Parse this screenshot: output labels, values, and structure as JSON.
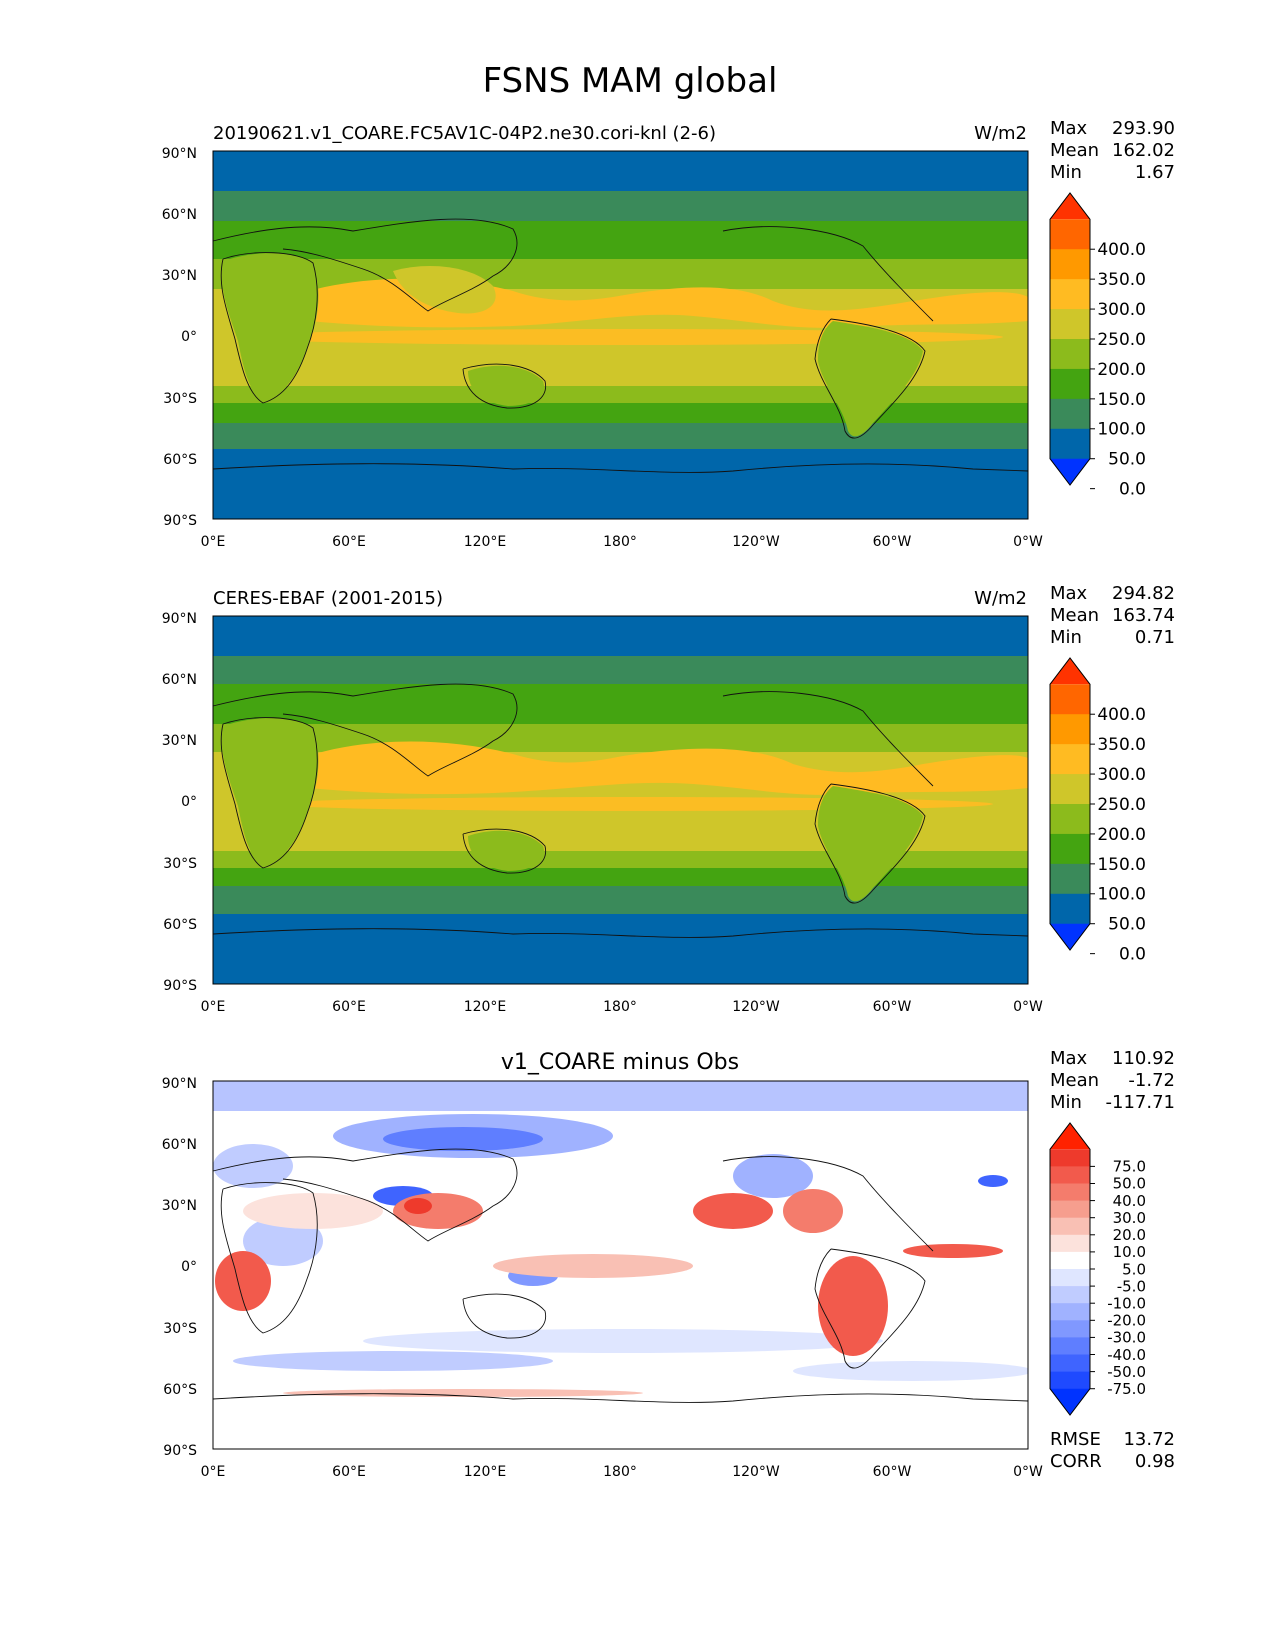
{
  "figure": {
    "title": "FSNS MAM global"
  },
  "lat_labels": [
    "90°N",
    "60°N",
    "30°N",
    "0°",
    "30°S",
    "60°S",
    "90°S"
  ],
  "lon_labels": [
    "0°E",
    "60°E",
    "120°E",
    "180°",
    "120°W",
    "60°W",
    "0°W"
  ],
  "stat_labels": {
    "max": "Max",
    "mean": "Mean",
    "min": "Min",
    "rmse": "RMSE",
    "corr": "CORR"
  },
  "panels": [
    {
      "id": "test",
      "left_title": "20190621.v1_COARE.FC5AV1C-04P2.ne30.cori-knl (2-6)",
      "center_title": "",
      "units": "W/m2",
      "stats": {
        "max": "293.90",
        "mean": "162.02",
        "min": "1.67"
      },
      "colorbar": {
        "labels": [
          "400.0",
          "350.0",
          "300.0",
          "250.0",
          "200.0",
          "150.0",
          "100.0",
          "50.0",
          "0.0"
        ],
        "colors": [
          "#ff3300",
          "#ff6600",
          "#ff9900",
          "#ffbb22",
          "#cfc62a",
          "#8cbb1c",
          "#44a411",
          "#3a8a5a",
          "#0066aa",
          "#0033ff"
        ]
      }
    },
    {
      "id": "ref",
      "left_title": "CERES-EBAF (2001-2015)",
      "center_title": "",
      "units": "W/m2",
      "stats": {
        "max": "294.82",
        "mean": "163.74",
        "min": "0.71"
      },
      "colorbar": {
        "labels": [
          "400.0",
          "350.0",
          "300.0",
          "250.0",
          "200.0",
          "150.0",
          "100.0",
          "50.0",
          "0.0"
        ],
        "colors": [
          "#ff3300",
          "#ff6600",
          "#ff9900",
          "#ffbb22",
          "#cfc62a",
          "#8cbb1c",
          "#44a411",
          "#3a8a5a",
          "#0066aa",
          "#0033ff"
        ]
      }
    },
    {
      "id": "diff",
      "left_title": "",
      "center_title": "v1_COARE minus Obs",
      "units": "",
      "stats": {
        "max": "110.92",
        "mean": "-1.72",
        "min": "-117.71",
        "rmse": "13.72",
        "corr": "0.98"
      },
      "colorbar": {
        "labels": [
          "75.0",
          "50.0",
          "40.0",
          "30.0",
          "20.0",
          "10.0",
          "5.0",
          "-5.0",
          "-10.0",
          "-20.0",
          "-30.0",
          "-40.0",
          "-50.0",
          "-75.0"
        ],
        "colors": [
          "#ff2200",
          "#ee3a2c",
          "#f25a4c",
          "#f47c6c",
          "#f69e8e",
          "#f9c0b4",
          "#fce2dc",
          "#ffffff",
          "#dfe6ff",
          "#c0ccff",
          "#a0b2ff",
          "#8098ff",
          "#5f7eff",
          "#3f64ff",
          "#1f4aff",
          "#0033ff"
        ]
      }
    }
  ]
}
